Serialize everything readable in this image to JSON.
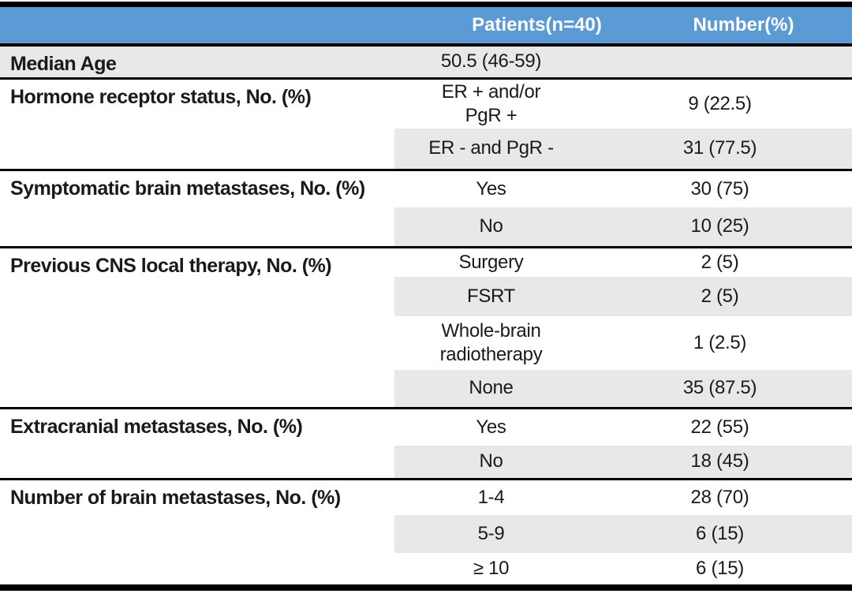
{
  "table": {
    "header": {
      "label_col": "",
      "patients_col": "Patients(n=40)",
      "number_col": "Number(%)"
    },
    "sections": [
      {
        "label": "Median Age",
        "rows": [
          {
            "patients": "50.5 (46-59)",
            "number": ""
          }
        ]
      },
      {
        "label": "Hormone receptor status, No. (%)",
        "rows": [
          {
            "patients": "ER + and/or\nPgR +",
            "number": "9 (22.5)"
          },
          {
            "patients": "ER - and PgR -",
            "number": "31 (77.5)"
          }
        ]
      },
      {
        "label": "Symptomatic brain metastases, No. (%)",
        "rows": [
          {
            "patients": "Yes",
            "number": "30 (75)"
          },
          {
            "patients": "No",
            "number": "10 (25)"
          }
        ]
      },
      {
        "label": "Previous CNS local therapy, No. (%)",
        "rows": [
          {
            "patients": "Surgery",
            "number": "2 (5)"
          },
          {
            "patients": "FSRT",
            "number": "2 (5)"
          },
          {
            "patients": "Whole-brain\nradiotherapy",
            "number": "1 (2.5)"
          },
          {
            "patients": "None",
            "number": "35 (87.5)"
          }
        ]
      },
      {
        "label": "Extracranial metastases, No. (%)",
        "rows": [
          {
            "patients": "Yes",
            "number": "22 (55)"
          },
          {
            "patients": "No",
            "number": "18 (45)"
          }
        ]
      },
      {
        "label": "Number of brain metastases, No. (%)",
        "rows": [
          {
            "patients": "1-4",
            "number": "28 (70)"
          },
          {
            "patients": "5-9",
            "number": "6 (15)"
          },
          {
            "patients": "≥ 10",
            "number": "6 (15)"
          }
        ]
      }
    ]
  },
  "colors": {
    "header_bg": "#5b9bd5",
    "header_text": "#ffffff",
    "row_shade": "#e9e8e8",
    "border": "#000000",
    "text": "#1a1a1a"
  }
}
